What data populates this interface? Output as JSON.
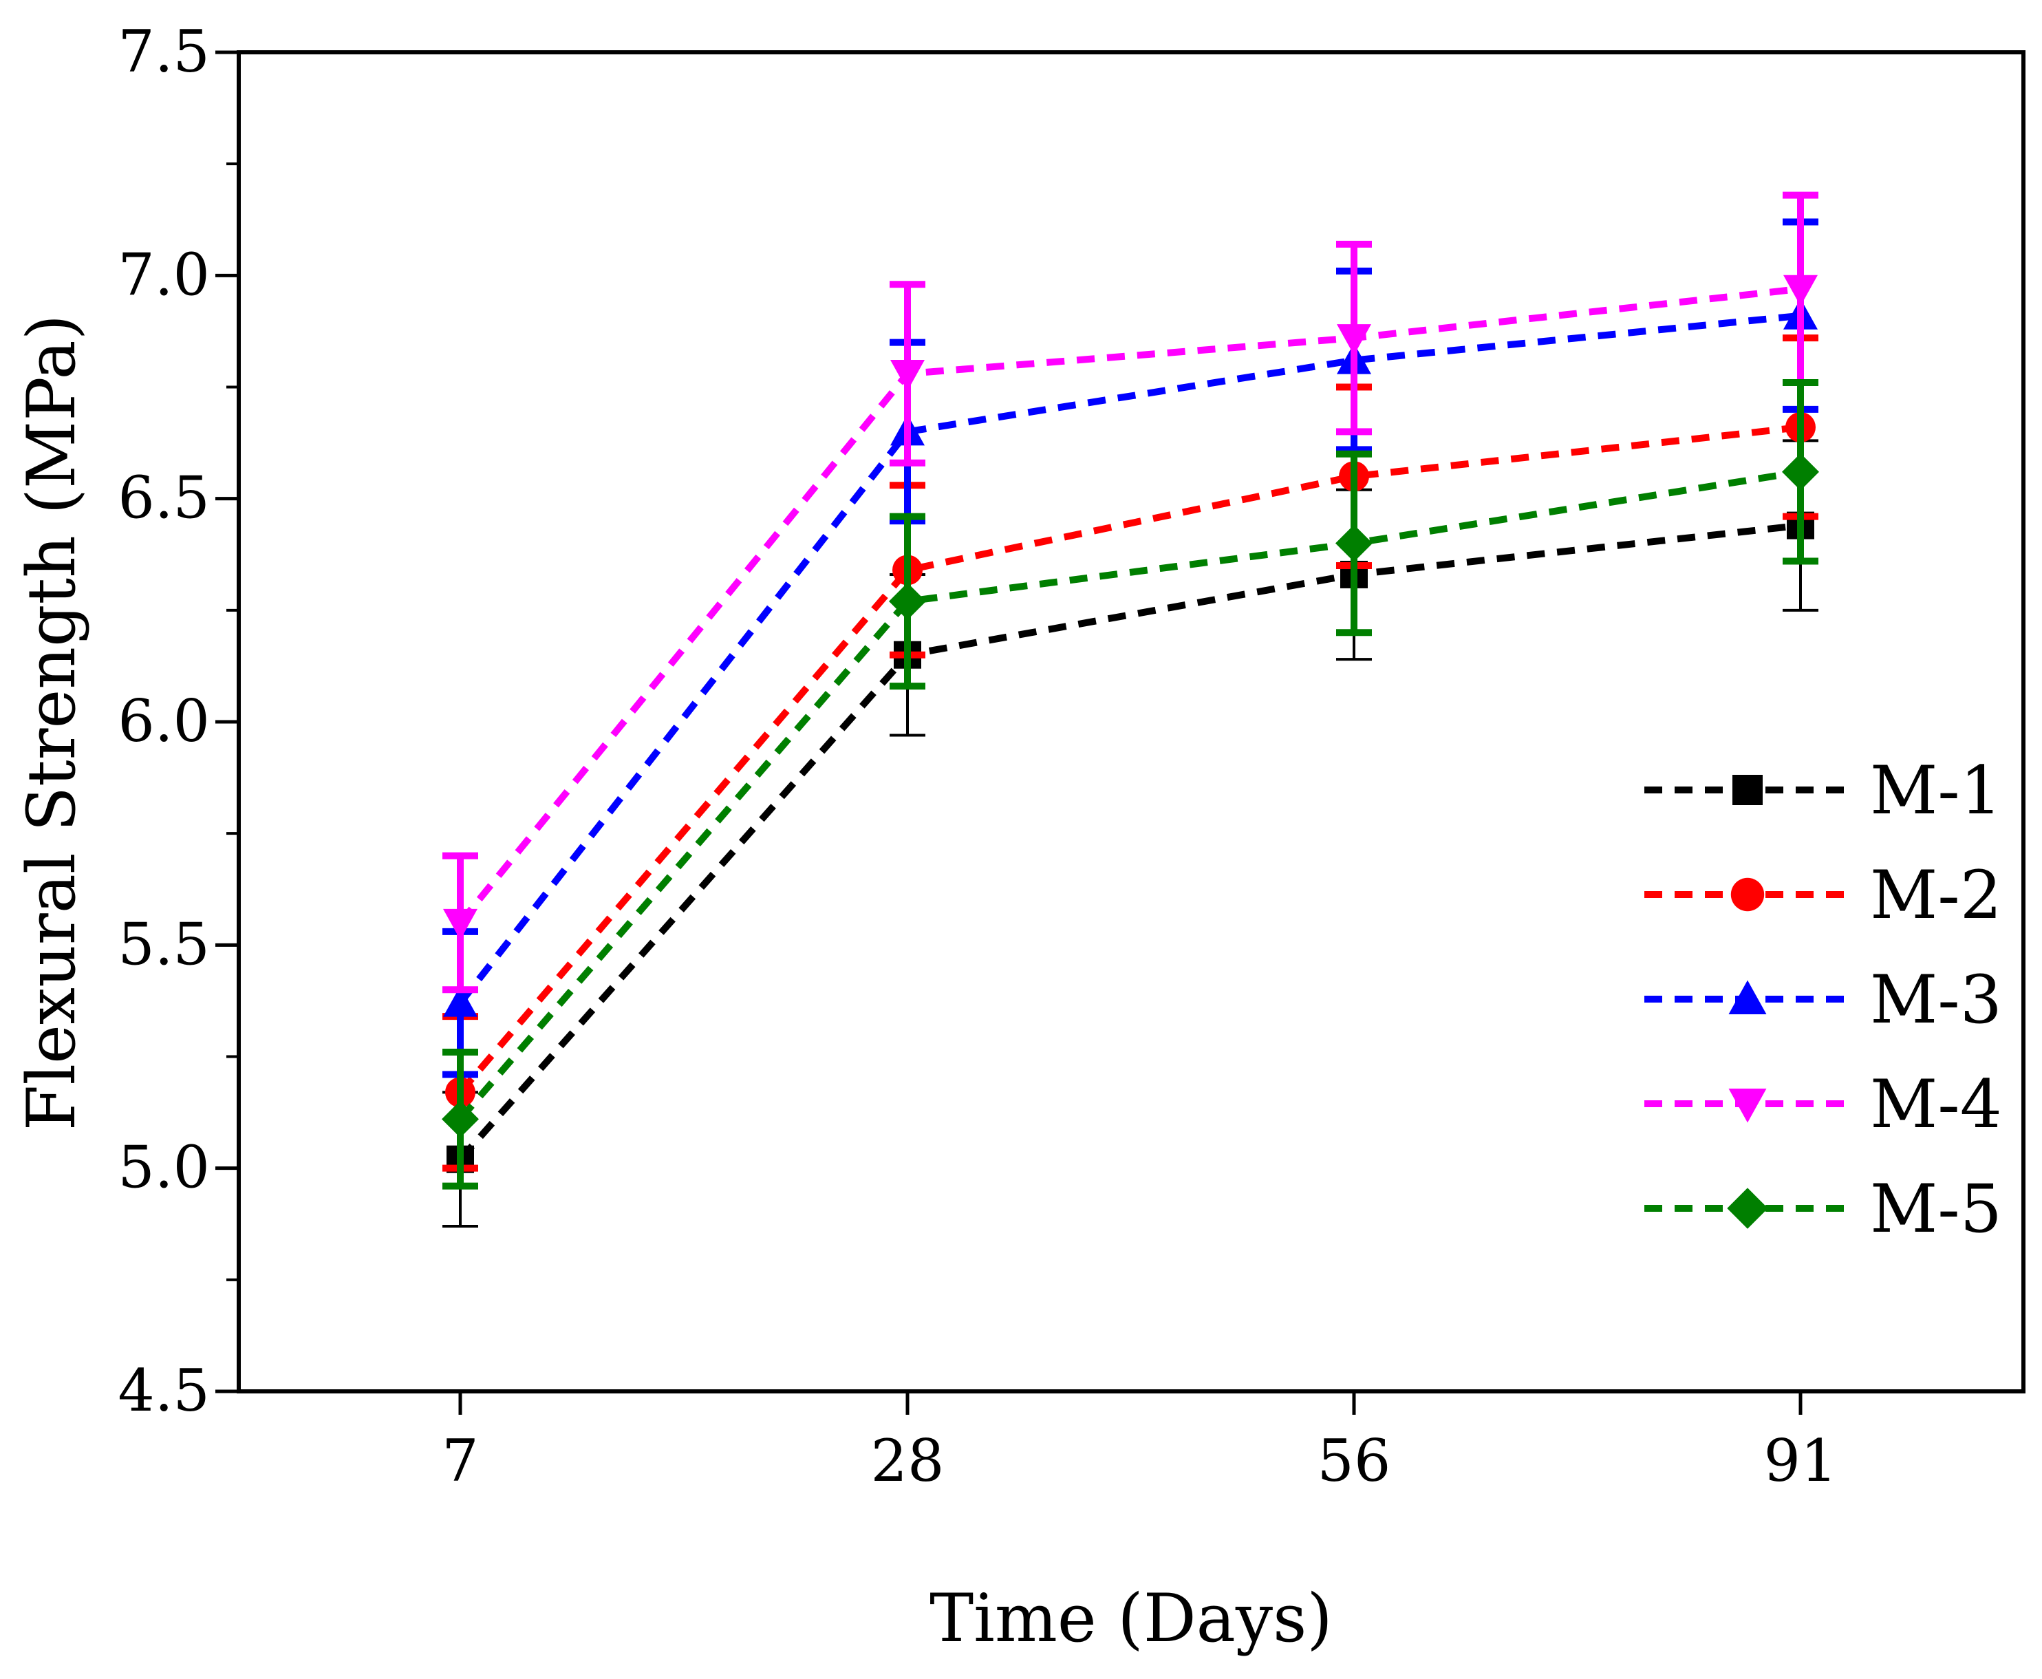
{
  "chart_data": {
    "type": "line",
    "xlabel": "Time (Days)",
    "ylabel": "Flexural Strength (MPa)",
    "x": [
      7,
      28,
      56,
      91
    ],
    "x_tick_labels": [
      "7",
      "28",
      "56",
      "91"
    ],
    "x_scale": "categorical",
    "ylim": [
      4.5,
      7.5
    ],
    "y_ticks": [
      "4.5",
      "5.0",
      "5.5",
      "6.0",
      "6.5",
      "7.0",
      "7.5"
    ],
    "grid": false,
    "legend_position": "lower-right",
    "line_style": "dashed",
    "series": [
      {
        "name": "M-1",
        "color": "#000000",
        "marker": "square",
        "values": [
          5.02,
          6.15,
          6.33,
          6.44
        ],
        "error": [
          0.15,
          0.18,
          0.19,
          0.19
        ]
      },
      {
        "name": "M-2",
        "color": "#ff0000",
        "marker": "circle",
        "values": [
          5.17,
          6.34,
          6.55,
          6.66
        ],
        "error": [
          0.17,
          0.19,
          0.2,
          0.2
        ]
      },
      {
        "name": "M-3",
        "color": "#0000ff",
        "marker": "triangle-up",
        "values": [
          5.37,
          6.65,
          6.81,
          6.91
        ],
        "error": [
          0.16,
          0.2,
          0.2,
          0.21
        ]
      },
      {
        "name": "M-4",
        "color": "#ff00ff",
        "marker": "triangle-down",
        "values": [
          5.55,
          6.78,
          6.86,
          6.97
        ],
        "error": [
          0.15,
          0.2,
          0.21,
          0.21
        ]
      },
      {
        "name": "M-5",
        "color": "#007f00",
        "marker": "diamond",
        "values": [
          5.11,
          6.27,
          6.4,
          6.56
        ],
        "error": [
          0.15,
          0.19,
          0.2,
          0.2
        ]
      }
    ]
  }
}
